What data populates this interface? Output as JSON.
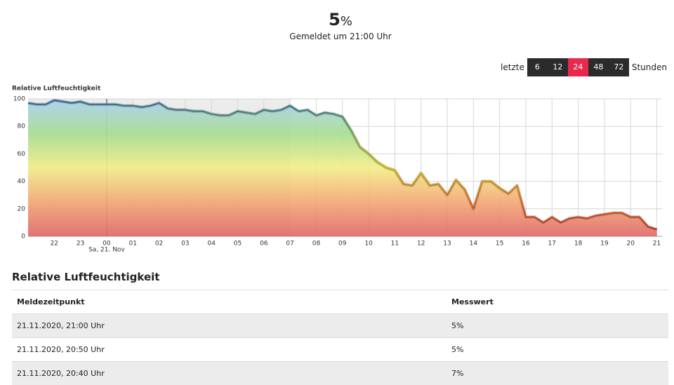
{
  "header": {
    "value": "5",
    "unit": "%",
    "subtitle": "Gemeldet um 21:00 Uhr"
  },
  "range_selector": {
    "prefix": "letzte",
    "options": [
      "6",
      "12",
      "24",
      "48",
      "72"
    ],
    "active": "24",
    "suffix": "Stunden"
  },
  "chart_data": {
    "type": "area",
    "y_label": "Relative Luftfeuchtigkeit",
    "x": [
      0,
      20,
      40,
      60,
      80,
      100,
      120,
      140,
      160,
      180,
      200,
      220,
      240,
      260,
      280,
      300,
      320,
      340,
      360,
      380,
      400,
      420,
      440,
      460,
      480,
      500,
      520,
      540,
      560,
      580,
      600,
      620,
      640,
      660,
      680,
      700,
      720,
      740,
      760,
      780,
      800,
      820,
      840,
      860,
      880,
      900,
      920,
      940,
      960,
      980,
      1000,
      1020,
      1040,
      1060,
      1080,
      1100,
      1120,
      1140,
      1160,
      1180,
      1200,
      1220,
      1240,
      1260,
      1280,
      1300,
      1320,
      1340,
      1360,
      1380,
      1400,
      1420,
      1440
    ],
    "series": [
      {
        "name": "Relative Luftfeuchtigkeit",
        "values": [
          97,
          96,
          96,
          99,
          98,
          97,
          98,
          96,
          96,
          96,
          96,
          95,
          95,
          94,
          95,
          97,
          93,
          92,
          92,
          91,
          91,
          89,
          88,
          88,
          91,
          90,
          89,
          92,
          91,
          92,
          95,
          91,
          92,
          88,
          90,
          89,
          87,
          77,
          65,
          60,
          54,
          50,
          48,
          38,
          37,
          46,
          37,
          38,
          30,
          41,
          34,
          20,
          40,
          40,
          35,
          31,
          37,
          14,
          14,
          10,
          14,
          10,
          13,
          14,
          13,
          15,
          16,
          17,
          17,
          14,
          14,
          7,
          5
        ]
      }
    ],
    "xlim": [
      0,
      1452
    ],
    "ylim": [
      0,
      100
    ],
    "yticks": [
      0,
      20,
      40,
      60,
      80,
      100
    ],
    "xticks": [
      {
        "value": 60,
        "label": "22"
      },
      {
        "value": 120,
        "label": "23"
      },
      {
        "value": 180,
        "label": "00"
      },
      {
        "value": 240,
        "label": "01"
      },
      {
        "value": 300,
        "label": "02"
      },
      {
        "value": 360,
        "label": "03"
      },
      {
        "value": 420,
        "label": "04"
      },
      {
        "value": 480,
        "label": "05"
      },
      {
        "value": 540,
        "label": "06"
      },
      {
        "value": 600,
        "label": "07"
      },
      {
        "value": 660,
        "label": "08"
      },
      {
        "value": 720,
        "label": "09"
      },
      {
        "value": 780,
        "label": "10"
      },
      {
        "value": 840,
        "label": "11"
      },
      {
        "value": 900,
        "label": "12"
      },
      {
        "value": 960,
        "label": "13"
      },
      {
        "value": 1020,
        "label": "14"
      },
      {
        "value": 1080,
        "label": "15"
      },
      {
        "value": 1140,
        "label": "16"
      },
      {
        "value": 1200,
        "label": "17"
      },
      {
        "value": 1260,
        "label": "18"
      },
      {
        "value": 1320,
        "label": "19"
      },
      {
        "value": 1380,
        "label": "20"
      },
      {
        "value": 1440,
        "label": "21"
      }
    ],
    "day_marker": {
      "x": 180,
      "label": "Sa, 21. Nov"
    },
    "highlight_range": [
      0,
      600
    ],
    "grid": true,
    "fill_colors": [
      "#e06668",
      "#f3a673",
      "#f1ee86",
      "#a6dc90",
      "#a8cff2"
    ],
    "line_colors": [
      "#b3281c",
      "#d2661c",
      "#c8b40a",
      "#6fa84c",
      "#2f6a9c"
    ]
  },
  "table": {
    "title": "Relative Luftfeuchtigkeit",
    "columns": [
      "Meldezeitpunkt",
      "Messwert"
    ],
    "rows": [
      [
        "21.11.2020, 21:00 Uhr",
        "5%"
      ],
      [
        "21.11.2020, 20:50 Uhr",
        "5%"
      ],
      [
        "21.11.2020, 20:40 Uhr",
        "7%"
      ]
    ]
  }
}
